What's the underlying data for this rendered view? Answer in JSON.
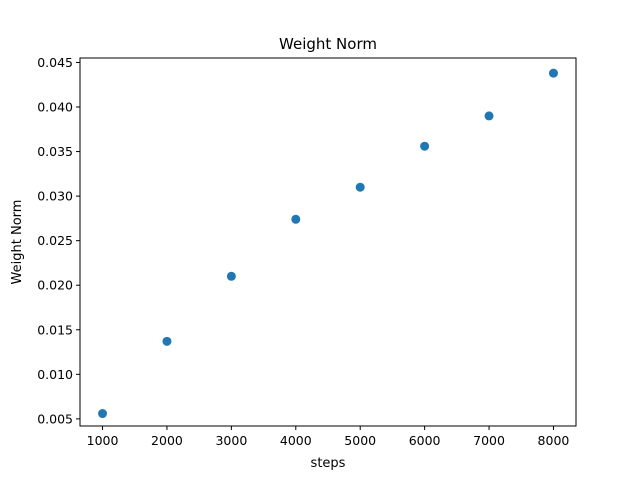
{
  "chart_data": {
    "type": "scatter",
    "title": "Weight Norm",
    "xlabel": "steps",
    "ylabel": "Weight Norm",
    "xlim": [
      650,
      8350
    ],
    "ylim": [
      0.0042,
      0.0455
    ],
    "x_ticks": [
      1000,
      2000,
      3000,
      4000,
      5000,
      6000,
      7000,
      8000
    ],
    "x_tick_labels": [
      "1000",
      "2000",
      "3000",
      "4000",
      "5000",
      "6000",
      "7000",
      "8000"
    ],
    "y_ticks": [
      0.005,
      0.01,
      0.015,
      0.02,
      0.025,
      0.03,
      0.035,
      0.04,
      0.045
    ],
    "y_tick_labels": [
      "0.005",
      "0.010",
      "0.015",
      "0.020",
      "0.025",
      "0.030",
      "0.035",
      "0.040",
      "0.045"
    ],
    "grid": false,
    "legend": "none",
    "marker_color": "#1f77b4",
    "series": [
      {
        "x": [
          1000,
          2000,
          3000,
          4000,
          5000,
          6000,
          7000,
          8000
        ],
        "y": [
          0.0056,
          0.0137,
          0.021,
          0.0274,
          0.031,
          0.0356,
          0.039,
          0.0438
        ]
      }
    ]
  }
}
